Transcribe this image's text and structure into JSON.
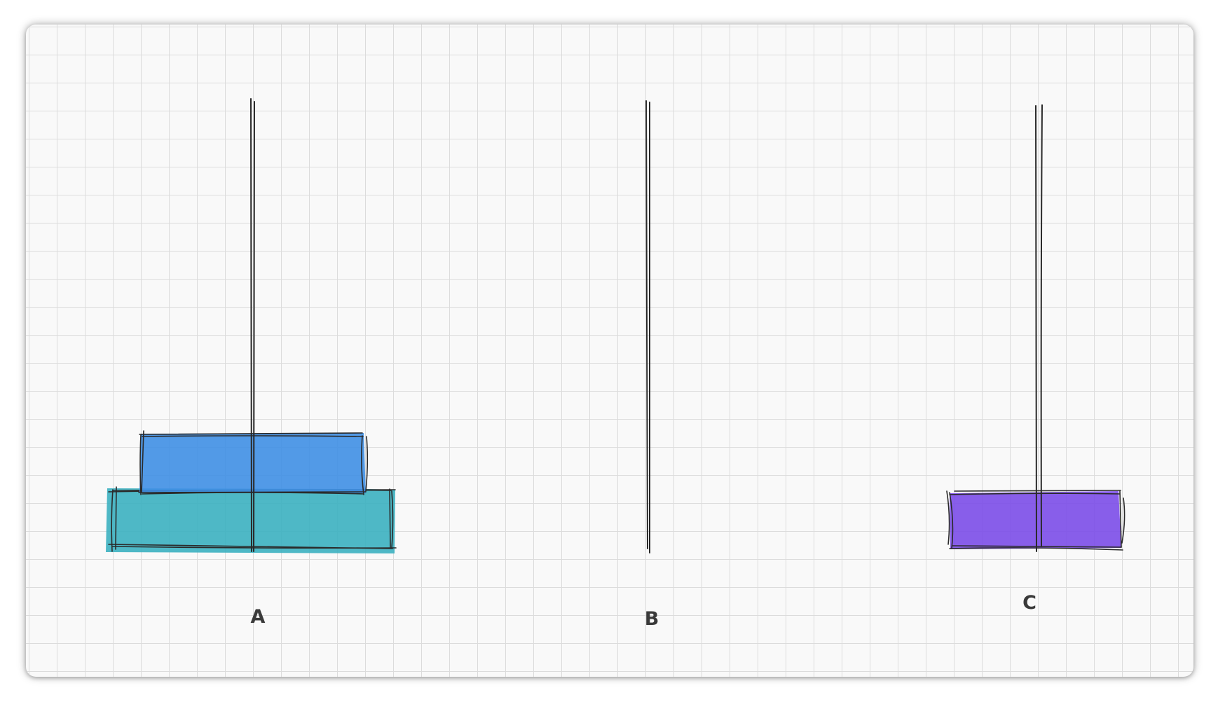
{
  "pegs": [
    {
      "label": "A"
    },
    {
      "label": "B"
    },
    {
      "label": "C"
    }
  ],
  "disks": [
    {
      "peg": "A",
      "level": 1,
      "color": "#3bb0c0"
    },
    {
      "peg": "A",
      "level": 2,
      "color": "#3f8fe4"
    },
    {
      "peg": "C",
      "level": 1,
      "color": "#7b4de8"
    }
  ],
  "colors": {
    "stroke": "#2a2a2a",
    "grid": "#dcdcdc",
    "background": "#f9f9f9"
  }
}
